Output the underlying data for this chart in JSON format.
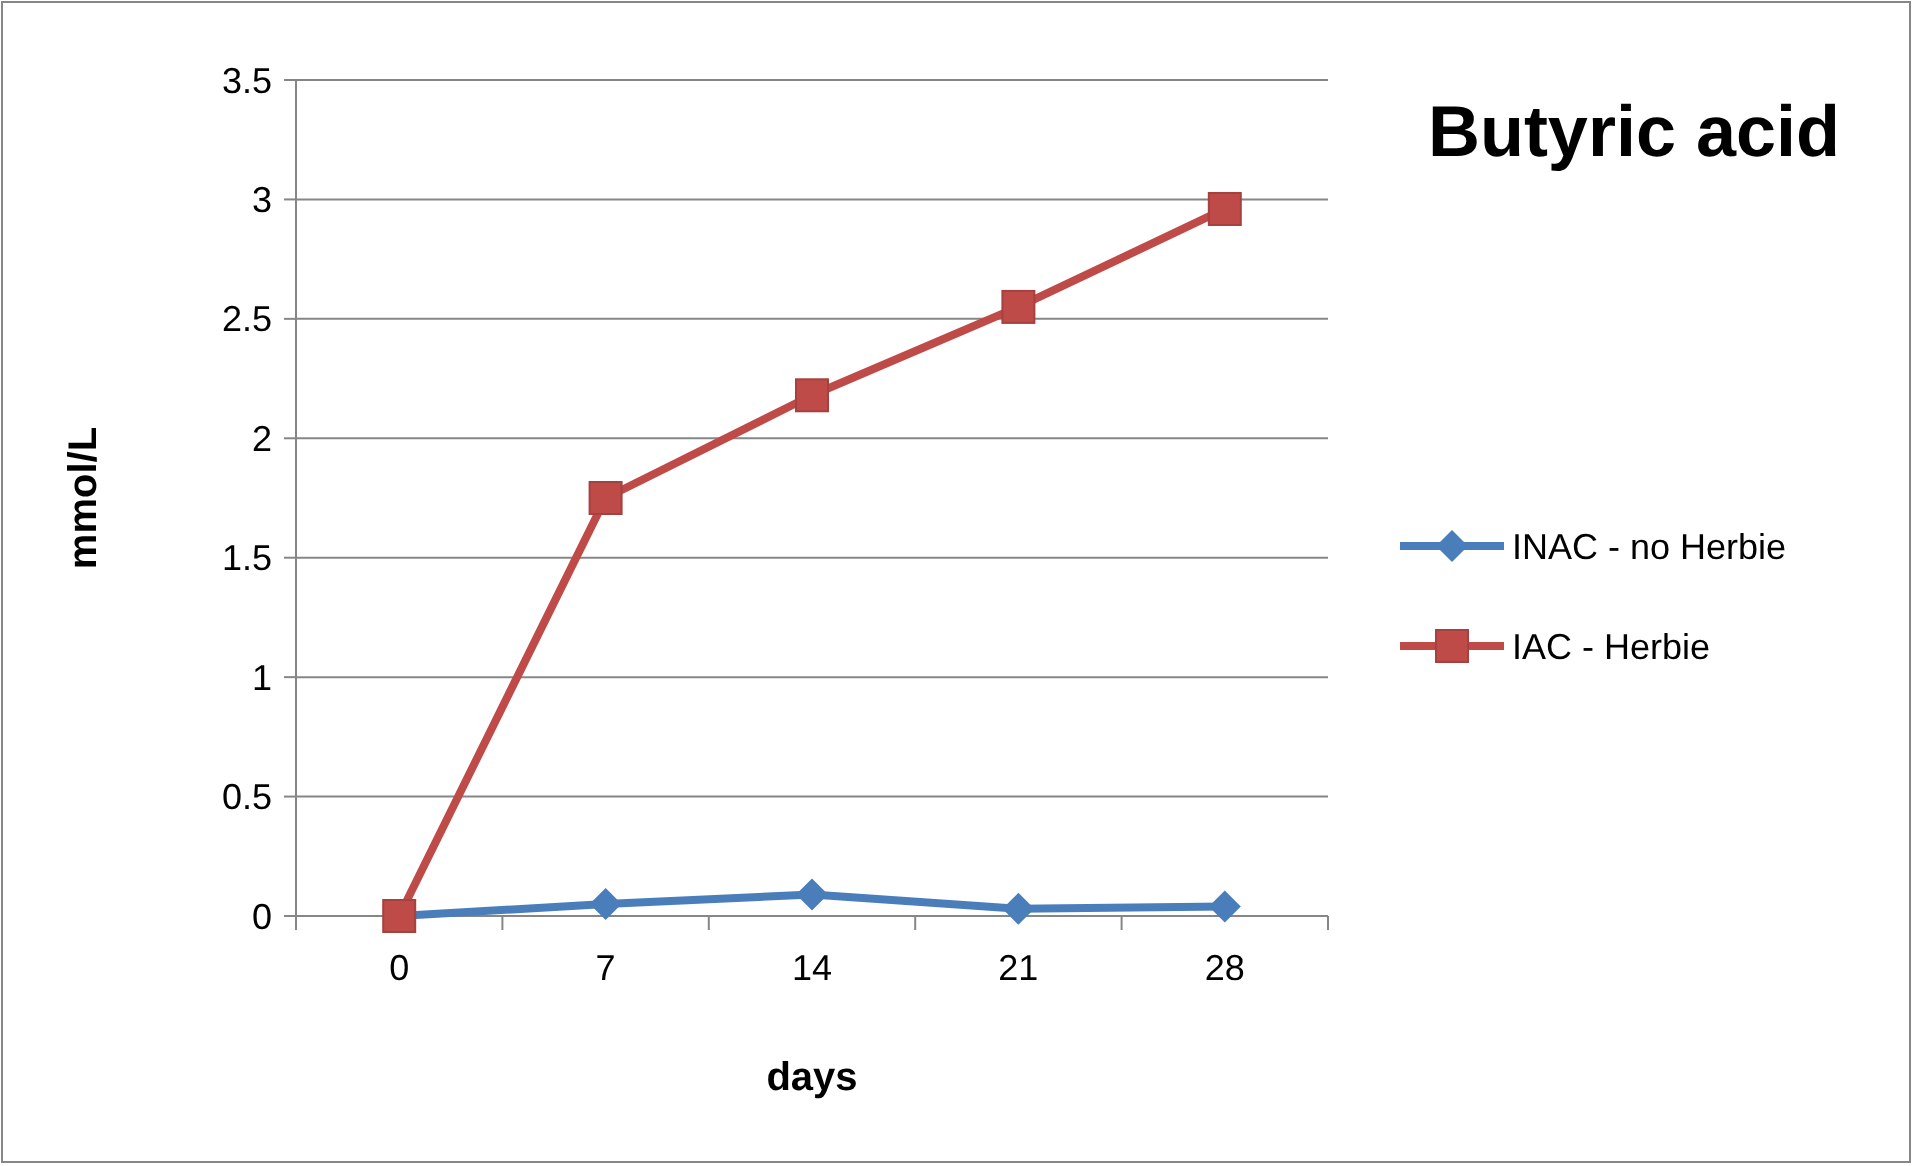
{
  "chart_data": {
    "type": "line",
    "title": "Butyric acid",
    "xlabel": "days",
    "ylabel": "mmol/L",
    "categories": [
      "0",
      "7",
      "14",
      "21",
      "28"
    ],
    "series": [
      {
        "name": "INAC - no Herbie",
        "color": "#4a7ebb",
        "marker": "diamond",
        "values": [
          0,
          0.05,
          0.09,
          0.03,
          0.04
        ]
      },
      {
        "name": "IAC - Herbie",
        "color": "#be4b48",
        "marker": "square",
        "values": [
          0,
          1.75,
          2.18,
          2.55,
          2.96
        ]
      }
    ],
    "ylim": [
      0,
      3.5
    ],
    "yticks": [
      0,
      0.5,
      1,
      1.5,
      2,
      2.5,
      3,
      3.5
    ],
    "grid": "y",
    "legend": "right",
    "line_style": "solid"
  }
}
